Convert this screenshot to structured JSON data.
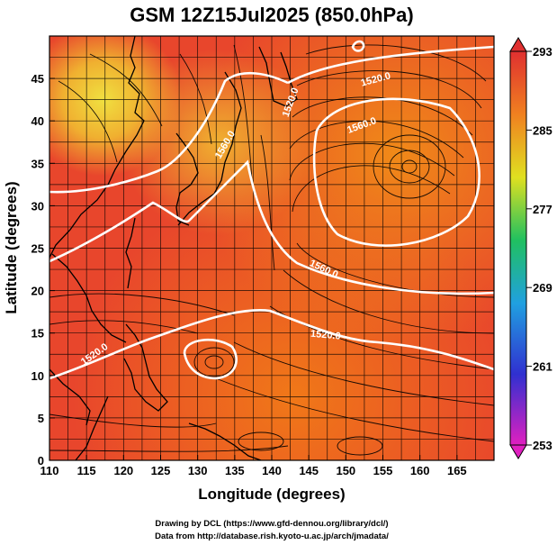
{
  "title": "GSM 12Z15Jul2025 (850.0hPa)",
  "axes": {
    "xlabel": "Longitude (degrees)",
    "ylabel": "Latitude  (degrees)",
    "x_ticks": [
      "110",
      "115",
      "120",
      "125",
      "130",
      "135",
      "140",
      "145",
      "150",
      "155",
      "160",
      "165"
    ],
    "y_ticks": [
      "0",
      "5",
      "10",
      "15",
      "20",
      "25",
      "30",
      "35",
      "40",
      "45"
    ]
  },
  "colorbar": {
    "ticks": [
      "253",
      "261",
      "269",
      "277",
      "285",
      "293"
    ],
    "min": 253,
    "max": 293,
    "colors": [
      "#e020c0",
      "#3030d0",
      "#20a0e0",
      "#20c060",
      "#e0e020",
      "#f08020",
      "#e03030"
    ]
  },
  "contour_labels": [
    "1520.0",
    "1520.0",
    "1560.0",
    "1560.0",
    "1520.0",
    "1560.0",
    "1520.0"
  ],
  "credits": {
    "line1": "Drawing by DCL (https://www.gfd-dennou.org/library/dcl/)",
    "line2": "Data from http://database.rish.kyoto-u.ac.jp/arch/jmadata/"
  },
  "chart_data": {
    "type": "heatmap",
    "field": "temperature (K) with geopotential height contours and wind streamlines",
    "xlim": [
      110,
      170
    ],
    "ylim": [
      0,
      50
    ],
    "color_range": [
      253,
      293
    ],
    "contour_levels": [
      1520.0,
      1560.0
    ],
    "grid": true
  }
}
